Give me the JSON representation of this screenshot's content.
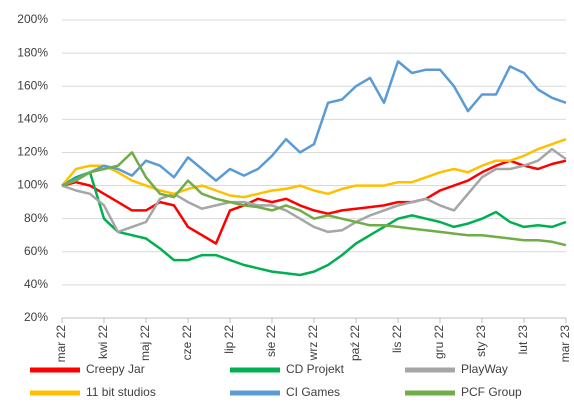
{
  "chart_data": {
    "type": "line",
    "categories": [
      "mar 22",
      null,
      null,
      "kwi 22",
      null,
      null,
      "maj 22",
      null,
      null,
      "cze 22",
      null,
      null,
      "lip 22",
      null,
      null,
      "sie 22",
      null,
      null,
      "wrz 22",
      null,
      null,
      "paź 22",
      null,
      null,
      "lis 22",
      null,
      null,
      "gru 22",
      null,
      null,
      "sty 23",
      null,
      null,
      "lut 23",
      null,
      null,
      "mar 23"
    ],
    "series": [
      {
        "name": "Creepy Jar",
        "color": "#ff0000",
        "values": [
          100,
          102,
          100,
          95,
          90,
          85,
          85,
          90,
          88,
          75,
          70,
          65,
          85,
          88,
          92,
          90,
          92,
          88,
          85,
          83,
          85,
          86,
          87,
          88,
          90,
          90,
          92,
          97,
          100,
          103,
          108,
          112,
          115,
          112,
          110,
          113,
          115
        ]
      },
      {
        "name": "CD Projekt",
        "color": "#00b050",
        "values": [
          100,
          105,
          108,
          80,
          72,
          70,
          68,
          62,
          55,
          55,
          58,
          58,
          55,
          52,
          50,
          48,
          47,
          46,
          48,
          52,
          58,
          65,
          70,
          75,
          80,
          82,
          80,
          78,
          75,
          77,
          80,
          84,
          78,
          75,
          76,
          75,
          78
        ]
      },
      {
        "name": "PlayWay",
        "color": "#a6a6a6",
        "values": [
          100,
          97,
          95,
          88,
          72,
          75,
          78,
          92,
          95,
          90,
          86,
          88,
          90,
          90,
          88,
          88,
          85,
          80,
          75,
          72,
          73,
          78,
          82,
          85,
          88,
          90,
          92,
          88,
          85,
          95,
          105,
          110,
          110,
          112,
          115,
          122,
          116
        ]
      },
      {
        "name": "11 bit studios",
        "color": "#ffc000",
        "values": [
          100,
          110,
          112,
          112,
          108,
          103,
          100,
          97,
          95,
          98,
          100,
          97,
          94,
          93,
          95,
          97,
          98,
          100,
          97,
          95,
          98,
          100,
          100,
          100,
          102,
          102,
          105,
          108,
          110,
          108,
          112,
          115,
          115,
          118,
          122,
          125,
          128
        ]
      },
      {
        "name": "CI Games",
        "color": "#5b9bd5",
        "values": [
          100,
          104,
          108,
          112,
          110,
          106,
          115,
          112,
          105,
          117,
          110,
          103,
          110,
          106,
          110,
          118,
          128,
          120,
          125,
          150,
          152,
          160,
          165,
          150,
          175,
          168,
          170,
          170,
          160,
          145,
          155,
          155,
          172,
          168,
          158,
          153,
          150
        ]
      },
      {
        "name": "PCF Group",
        "color": "#70ad47",
        "values": [
          100,
          103,
          108,
          110,
          112,
          120,
          105,
          95,
          93,
          103,
          95,
          92,
          90,
          88,
          87,
          85,
          88,
          85,
          80,
          82,
          80,
          78,
          76,
          76,
          75,
          74,
          73,
          72,
          71,
          70,
          70,
          69,
          68,
          67,
          67,
          66,
          64
        ]
      }
    ],
    "ylim": [
      20,
      200
    ],
    "yticks": [
      {
        "value": 20,
        "label": "20%"
      },
      {
        "value": 40,
        "label": "40%"
      },
      {
        "value": 60,
        "label": "60%"
      },
      {
        "value": 80,
        "label": "80%"
      },
      {
        "value": 100,
        "label": "100%"
      },
      {
        "value": 120,
        "label": "120%"
      },
      {
        "value": 140,
        "label": "140%"
      },
      {
        "value": 160,
        "label": "160%"
      },
      {
        "value": 180,
        "label": "180%"
      },
      {
        "value": 200,
        "label": "200%"
      }
    ],
    "grid": true
  }
}
